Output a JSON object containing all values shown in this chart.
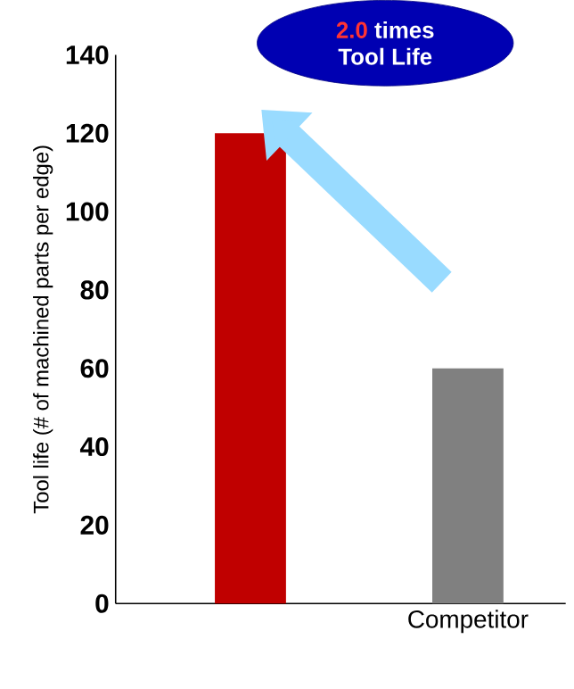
{
  "chart_data": {
    "type": "bar",
    "categories": [
      null,
      "Competitor"
    ],
    "values": [
      120,
      60
    ],
    "colors": [
      "#c00000",
      "#808080"
    ],
    "ylabel": "Tool life (# of machined parts per edge)",
    "ylim": [
      0,
      140
    ],
    "yticks": [
      0,
      20,
      40,
      60,
      80,
      100,
      120,
      140
    ],
    "annotations": [
      "2.0",
      "times",
      "Tool Life"
    ]
  }
}
